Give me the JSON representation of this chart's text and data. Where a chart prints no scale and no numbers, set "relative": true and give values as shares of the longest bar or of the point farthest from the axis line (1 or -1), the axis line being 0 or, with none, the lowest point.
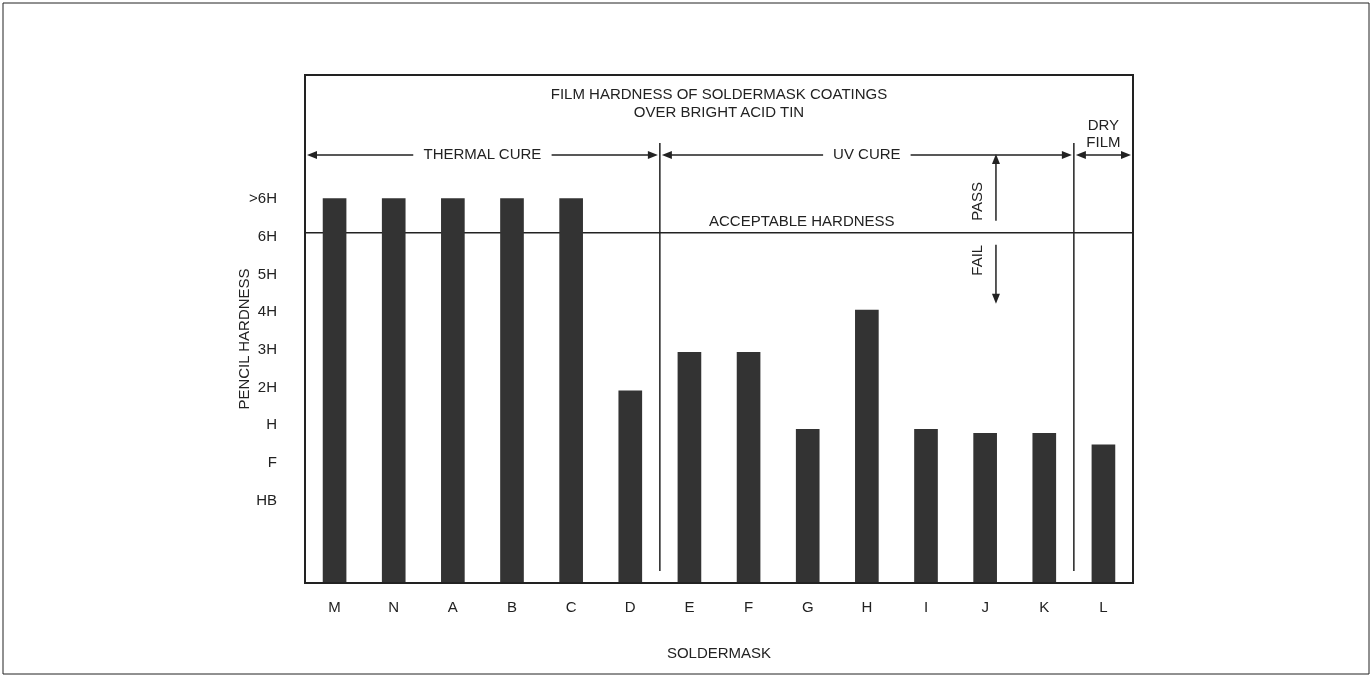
{
  "chart_data": {
    "type": "bar",
    "title": "FILM HARDNESS OF SOLDERMASK COATINGS\nOVER BRIGHT ACID TIN",
    "xlabel": "SOLDERMASK",
    "ylabel": "PENCIL HARDNESS",
    "categories": [
      "M",
      "N",
      "A",
      "B",
      "C",
      "D",
      "E",
      "F",
      "G",
      "H",
      "I",
      "J",
      "K",
      "L"
    ],
    "values": [
      1.0,
      1.0,
      1.0,
      1.0,
      1.0,
      0.5,
      0.6,
      0.6,
      0.4,
      0.71,
      0.4,
      0.39,
      0.39,
      0.36
    ],
    "relative": true,
    "color": "#333333",
    "ref_lines": [
      {
        "axis": "y",
        "value": 0.91,
        "label": "ACCEPTABLE HARDNESS",
        "color": "#222222"
      }
    ],
    "annotations": [
      "THERMAL CURE",
      "UV CURE",
      "DRY FILM",
      "PASS",
      "FAIL",
      "HB",
      "F",
      "H",
      "2H",
      "3H",
      "4H",
      "5H",
      "6H",
      ">6H"
    ],
    "grid": false,
    "legend": false
  }
}
